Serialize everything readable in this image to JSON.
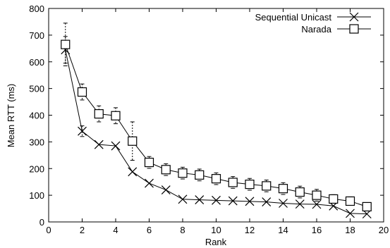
{
  "chart_data": {
    "type": "line",
    "xlabel": "Rank",
    "ylabel": "Mean RTT (ms)",
    "xlim": [
      0,
      20
    ],
    "ylim": [
      0,
      800
    ],
    "xticks": [
      0,
      2,
      4,
      6,
      8,
      10,
      12,
      14,
      16,
      18,
      20
    ],
    "yticks": [
      0,
      100,
      200,
      300,
      400,
      500,
      600,
      700,
      800
    ],
    "xtick_labels": [
      "0",
      "2",
      "4",
      "6",
      "8",
      "10",
      "12",
      "14",
      "16",
      "18",
      "20"
    ],
    "ytick_labels": [
      "0",
      "100",
      "200",
      "300",
      "400",
      "500",
      "600",
      "700",
      "800"
    ],
    "grid": false,
    "legend_position": "top-right",
    "series": [
      {
        "name": "Sequential Unicast",
        "marker": "x",
        "color": "#000000",
        "x": [
          1,
          2,
          3,
          4,
          5,
          6,
          7,
          8,
          9,
          10,
          11,
          12,
          13,
          14,
          15,
          16,
          17,
          18,
          19
        ],
        "y": [
          645,
          340,
          290,
          285,
          188,
          145,
          120,
          85,
          83,
          81,
          79,
          77,
          75,
          70,
          67,
          66,
          60,
          32,
          30
        ],
        "error": [
          50,
          20,
          0,
          0,
          0,
          0,
          0,
          0,
          0,
          0,
          0,
          0,
          0,
          0,
          0,
          0,
          0,
          0,
          0
        ]
      },
      {
        "name": "Narada",
        "marker": "square",
        "color": "#000000",
        "x": [
          1,
          2,
          3,
          4,
          5,
          6,
          7,
          8,
          9,
          10,
          11,
          12,
          13,
          14,
          15,
          16,
          17,
          18,
          19
        ],
        "y": [
          665,
          487,
          405,
          398,
          303,
          223,
          196,
          183,
          176,
          162,
          148,
          141,
          135,
          125,
          112,
          100,
          86,
          78,
          57
        ],
        "error": [
          80,
          30,
          30,
          30,
          72,
          22,
          22,
          22,
          22,
          22,
          22,
          22,
          22,
          22,
          22,
          22,
          16,
          16,
          0
        ]
      }
    ]
  }
}
